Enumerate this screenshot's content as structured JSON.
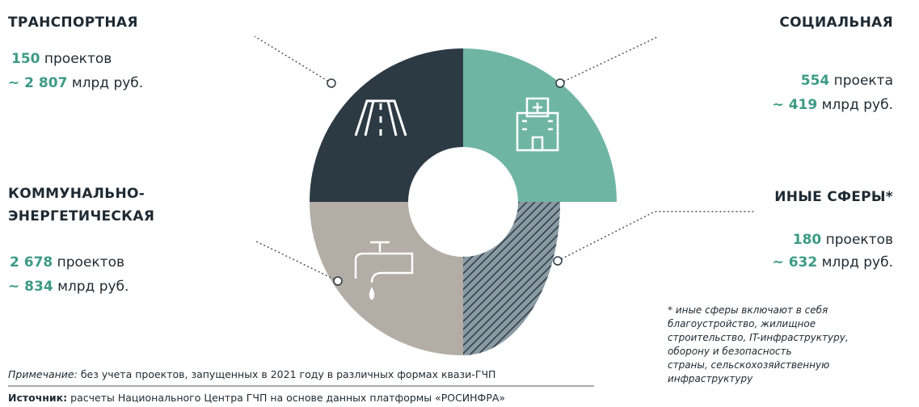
{
  "sectors": [
    {
      "title_lines": [
        "ТРАНСПОРТНАЯ"
      ],
      "count": "150",
      "count_unit": "проектов",
      "amount": "~ 2 807",
      "amount_unit": "млрд руб."
    },
    {
      "title_lines": [
        "СОЦИАЛЬНАЯ"
      ],
      "count": "554",
      "count_unit": "проекта",
      "amount": "~ 419",
      "amount_unit": "млрд руб."
    },
    {
      "title_lines": [
        "КОММУНАЛЬНО-",
        "ЭНЕРГЕТИЧЕСКАЯ"
      ],
      "count": "2 678",
      "count_unit": "проектов",
      "amount": "~ 834",
      "amount_unit": "млрд руб."
    },
    {
      "title_lines": [
        "ИНЫЕ СФЕРЫ*"
      ],
      "count": "180",
      "count_unit": "проектов",
      "amount": "~ 632",
      "amount_unit": "млрд руб."
    }
  ],
  "footnote_lines": [
    "* иные сферы включают в себя",
    "благоустройство, жилищное",
    "строительство, IT-инфраструктуру,",
    "оборону и безопасность",
    "страны, сельскохозяйственную",
    "инфраструктуру"
  ],
  "note_label": "Примечание:",
  "note": "без учета проектов, запущенных в 2021 году в различных формах квази-ГЧП",
  "source_label": "Источник:",
  "source": "расчеты Национального Центра ГЧП на основе данных платформы «РОСИНФРА»"
}
